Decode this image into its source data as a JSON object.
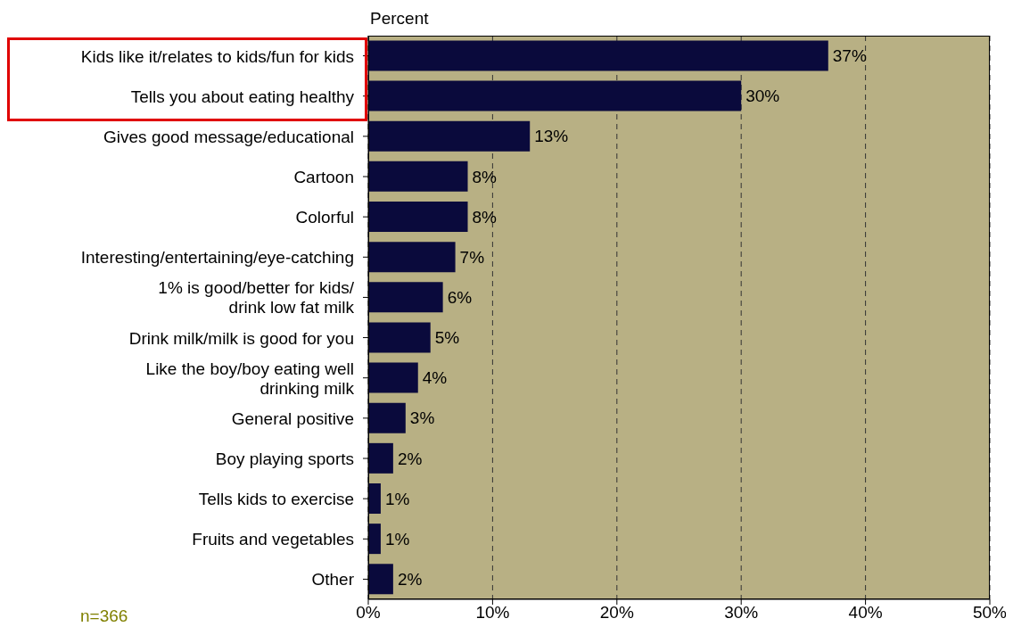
{
  "chart_data": {
    "type": "bar",
    "orientation": "horizontal",
    "xlabel": "Percent",
    "categories": [
      "Kids like it/relates to kids/fun for kids",
      "Tells you about eating healthy",
      "Gives good message/educational",
      "Cartoon",
      "Colorful",
      "Interesting/entertaining/eye-catching",
      "1% is good/better for kids/\ndrink low fat milk",
      "Drink milk/milk is good for you",
      "Like the boy/boy eating well\ndrinking milk",
      "General positive",
      "Boy playing sports",
      "Tells kids to exercise",
      "Fruits and vegetables",
      "Other"
    ],
    "values": [
      37,
      30,
      13,
      8,
      8,
      7,
      6,
      5,
      4,
      3,
      2,
      1,
      1,
      2
    ],
    "value_labels": [
      "37%",
      "30%",
      "13%",
      "8%",
      "8%",
      "7%",
      "6%",
      "5%",
      "4%",
      "3%",
      "2%",
      "1%",
      "1%",
      "2%"
    ],
    "color": "#0a0a3c",
    "xlim": [
      0,
      50
    ],
    "xticks": [
      {
        "value": 0,
        "label": "0%"
      },
      {
        "value": 10,
        "label": "10%"
      },
      {
        "value": 20,
        "label": "20%"
      },
      {
        "value": 30,
        "label": "30%"
      },
      {
        "value": 40,
        "label": "40%"
      },
      {
        "value": 50,
        "label": "50%"
      }
    ],
    "grid": "x",
    "annotations": [
      "n=366"
    ]
  }
}
